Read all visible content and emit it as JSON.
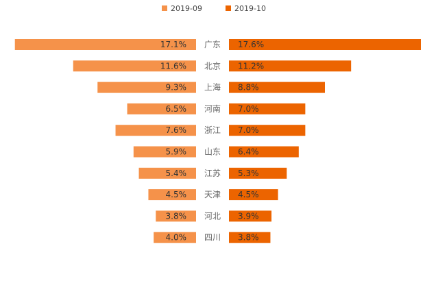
{
  "chart_data": {
    "type": "bar",
    "orientation": "horizontal-butterfly",
    "legend_position": "top-center",
    "grid": false,
    "categories": [
      "广东",
      "北京",
      "上海",
      "河南",
      "浙江",
      "山东",
      "江苏",
      "天津",
      "河北",
      "四川"
    ],
    "series": [
      {
        "name": "2019-09",
        "color": "#F5924A",
        "side": "left",
        "values": [
          17.1,
          11.6,
          9.3,
          6.5,
          7.6,
          5.9,
          5.4,
          4.5,
          3.8,
          4.0
        ],
        "labels": [
          "17.1%",
          "11.6%",
          "9.3%",
          "6.5%",
          "7.6%",
          "5.9%",
          "5.4%",
          "4.5%",
          "3.8%",
          "4.0%"
        ]
      },
      {
        "name": "2019-10",
        "color": "#EC6400",
        "side": "right",
        "values": [
          17.6,
          11.2,
          8.8,
          7.0,
          7.0,
          6.4,
          5.3,
          4.5,
          3.9,
          3.8
        ],
        "labels": [
          "17.6%",
          "11.2%",
          "8.8%",
          "7.0%",
          "7.0%",
          "6.4%",
          "5.3%",
          "4.5%",
          "3.9%",
          "3.8%"
        ]
      }
    ],
    "xlim": [
      0,
      17.6
    ]
  }
}
